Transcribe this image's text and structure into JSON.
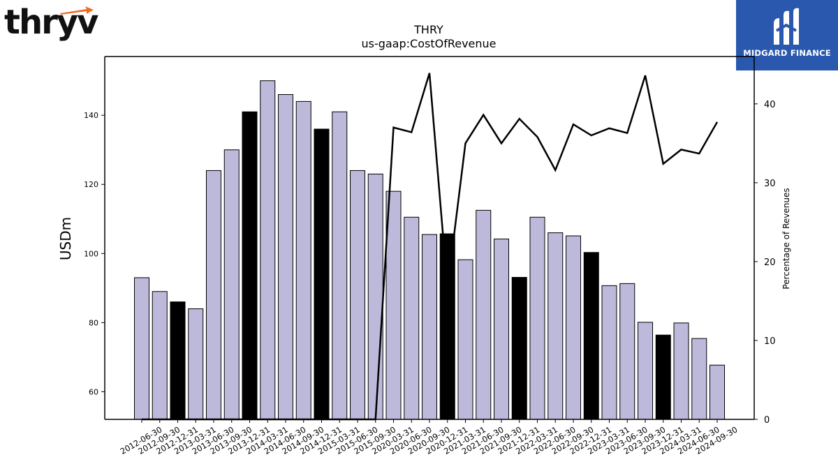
{
  "logos": {
    "left_text": "thryv",
    "right_text": "MIDGARD FINANCE"
  },
  "chart_data": {
    "type": "bar",
    "title": "THRY",
    "subtitle": "us-gaap:CostOfRevenue",
    "ylabel": "USDm",
    "y2label": "Percentage of Revenues",
    "ylim": [
      52,
      157
    ],
    "y2lim": [
      0,
      46
    ],
    "yticks": [
      60,
      80,
      100,
      120,
      140
    ],
    "y2ticks": [
      0,
      10,
      20,
      30,
      40
    ],
    "categories": [
      "2012-06-30",
      "2012-09-30",
      "2012-12-31",
      "2013-03-31",
      "2013-06-30",
      "2013-09-30",
      "2013-12-31",
      "2014-03-31",
      "2014-06-30",
      "2014-09-30",
      "2014-12-31",
      "2015-03-31",
      "2015-06-30",
      "2015-09-30",
      "2020-03-31",
      "2020-06-30",
      "2020-09-30",
      "2020-12-31",
      "2021-03-31",
      "2021-06-30",
      "2021-09-30",
      "2021-12-31",
      "2022-03-31",
      "2022-06-30",
      "2022-09-30",
      "2022-12-31",
      "2023-03-31",
      "2023-06-30",
      "2023-09-30",
      "2023-12-31",
      "2024-03-31",
      "2024-06-30",
      "2024-09-30"
    ],
    "series": [
      {
        "kind": "bar",
        "values": [
          93,
          89,
          86,
          84,
          124,
          130,
          141,
          150,
          146,
          144,
          136,
          141,
          124,
          123,
          118,
          110.5,
          105.5,
          105.7,
          98.2,
          112.5,
          104.2,
          93.1,
          110.5,
          106,
          105.1,
          100.3,
          90.7,
          91.3,
          80.1,
          76.4,
          79.9,
          75.4,
          67.7
        ],
        "highlight_quarter_end": "12-31",
        "colors": {
          "normal": "#bdb9da",
          "highlight": "#000000"
        }
      },
      {
        "kind": "line",
        "axis": "right",
        "values": [
          0,
          0,
          0,
          0,
          0,
          0,
          0,
          0,
          0,
          0,
          0,
          0,
          0,
          0,
          37,
          36.4,
          43.9,
          16.6,
          35,
          38.6,
          35,
          38.1,
          35.8,
          31.6,
          37.4,
          36,
          36.9,
          36.3,
          43.6,
          32.4,
          34.2,
          33.7,
          37.7
        ],
        "color": "#000000"
      }
    ]
  }
}
